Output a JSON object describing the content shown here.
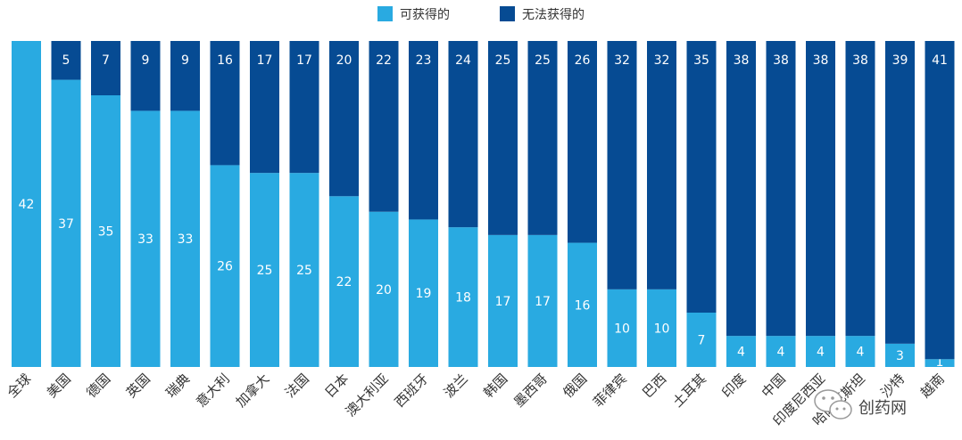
{
  "chart_data": {
    "type": "bar",
    "stacked": true,
    "orientation": "vertical",
    "categories": [
      "全球",
      "美国",
      "德国",
      "英国",
      "瑞典",
      "意大利",
      "加拿大",
      "法国",
      "日本",
      "澳大利亚",
      "西班牙",
      "波兰",
      "韩国",
      "墨西哥",
      "俄国",
      "菲律宾",
      "巴西",
      "土耳其",
      "印度",
      "中国",
      "印度尼西亚",
      "哈萨克斯坦",
      "沙特",
      "越南"
    ],
    "series": [
      {
        "name": "可获得的",
        "color": "#29aae1",
        "values": [
          42,
          37,
          35,
          33,
          33,
          26,
          25,
          25,
          22,
          20,
          19,
          18,
          17,
          17,
          16,
          10,
          10,
          7,
          4,
          4,
          4,
          4,
          3,
          1
        ]
      },
      {
        "name": "无法获得的",
        "color": "#064b93",
        "values": [
          0,
          5,
          7,
          9,
          9,
          16,
          17,
          17,
          20,
          22,
          23,
          24,
          25,
          25,
          26,
          32,
          32,
          35,
          38,
          38,
          38,
          38,
          39,
          41
        ]
      }
    ],
    "ylim": [
      0,
      42
    ],
    "legend": "top-center",
    "grid": false
  },
  "watermark": {
    "label": "创药网"
  }
}
